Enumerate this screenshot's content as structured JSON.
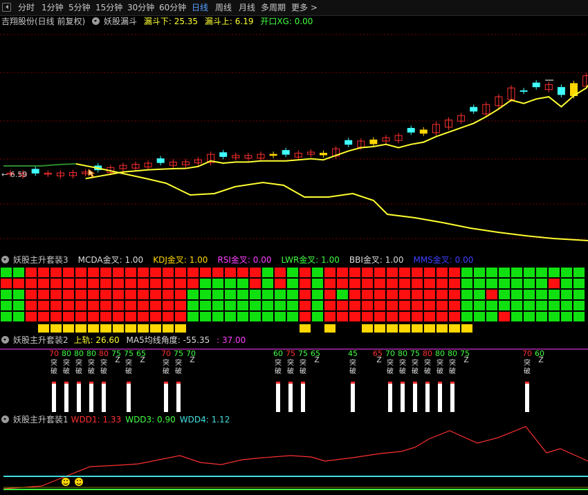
{
  "toolbar": {
    "timeframes": [
      "分时",
      "1分钟",
      "5分钟",
      "15分钟",
      "30分钟",
      "60分钟",
      "日线",
      "周线",
      "月线",
      "多周期",
      "更多 >"
    ],
    "active": "日线"
  },
  "main_header": {
    "title": "吉翔股份(日线 前复权)",
    "indicator": "妖股漏斗",
    "lower_label": "漏斗下: 25.35",
    "upper_label": "漏斗上: 6.19",
    "open_label": "开口XG: 0.00"
  },
  "price_marker": "← 6.59",
  "panel3": {
    "title": "妖股主升套装3",
    "items": [
      {
        "label": "MCDA金叉: 1.00",
        "color": "#dcdcdc"
      },
      {
        "label": "KDJ金叉: 1.00",
        "color": "#ffd700"
      },
      {
        "label": "RSI金叉: 0.00",
        "color": "#ff40ff"
      },
      {
        "label": "LWR金叉: 1.00",
        "color": "#40ff40"
      },
      {
        "label": "BBI金叉: 1.00",
        "color": "#dcdcdc"
      },
      {
        "label": "MMS金叉: 0.00",
        "color": "#4040ff"
      }
    ]
  },
  "panel2": {
    "title": "妖股主升套装2",
    "upper_label": "上轨: 26.60",
    "angle_label": "MA5均线角度: -55.35",
    "value_label": ": 37.00",
    "signals": [
      {
        "value": "70",
        "text": "突破"
      },
      {
        "value": "80",
        "text": "突破"
      },
      {
        "value": "80",
        "text": "突破"
      },
      {
        "value": "80",
        "text": "突破"
      },
      {
        "value": "80",
        "text": "突破"
      },
      {
        "value": "75",
        "text": "Z"
      },
      {
        "value": "75",
        "text": "突破"
      },
      {
        "value": "65",
        "text": "Z"
      },
      {
        "value": "70",
        "text": "突破"
      },
      {
        "value": "75",
        "text": "突破"
      },
      {
        "value": "70",
        "text": "Z"
      },
      {
        "value": "60",
        "text": "突破"
      },
      {
        "value": "75",
        "text": "突破"
      },
      {
        "value": "75",
        "text": "突破"
      },
      {
        "value": "65",
        "text": "Z"
      },
      {
        "value": "45",
        "text": "突破"
      },
      {
        "value": "65",
        "text": "Z"
      },
      {
        "value": "70",
        "text": "突破"
      },
      {
        "value": "80",
        "text": "突破"
      },
      {
        "value": "75",
        "text": "突破"
      },
      {
        "value": "80",
        "text": "突破"
      },
      {
        "value": "80",
        "text": "突破"
      },
      {
        "value": "80",
        "text": "突破"
      },
      {
        "value": "75",
        "text": "Z"
      },
      {
        "value": "70",
        "text": "突破"
      },
      {
        "value": "60",
        "text": "Z"
      }
    ]
  },
  "panel1": {
    "title": "妖股主升套装1",
    "items": [
      {
        "label": "WDD1: 1.33",
        "color": "#ff3030"
      },
      {
        "label": "WDD3: 0.90",
        "color": "#40ff40"
      },
      {
        "label": "WDD4: 1.12",
        "color": "#40e0e0"
      }
    ]
  },
  "colors": {
    "up": "#ff3030",
    "down": "#40ffff",
    "ma": "#ffff30",
    "grid": "#7a0000",
    "bull_cell": "#ff1010",
    "bear_cell": "#10e010",
    "yellow_cell": "#ffd700"
  },
  "chart_data": {
    "type": "candlestick",
    "price_marker": 6.59,
    "close_series": [
      6.6,
      6.6,
      6.6,
      6.6,
      6.62,
      6.65,
      6.7,
      6.9,
      7.1,
      7.3,
      7.4,
      7.5,
      7.55,
      7.6,
      7.62,
      7.8,
      8.3,
      8.1,
      8.2,
      8.2,
      8.3,
      8.3,
      8.3,
      8.4,
      8.5,
      8.4,
      8.8,
      9.2,
      9.5,
      9.6,
      9.8,
      10.0,
      10.3,
      10.5,
      11.0,
      11.4,
      11.8,
      12.2,
      12.8,
      13.5,
      14.3,
      14.0,
      14.4,
      14.6,
      13.7,
      14.7,
      15.4,
      17.0,
      17.8,
      17.5,
      15.3,
      14.6,
      16.0
    ]
  }
}
